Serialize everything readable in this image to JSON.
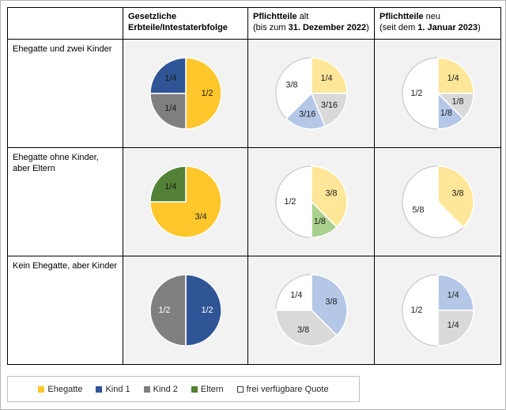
{
  "header": {
    "col1": {
      "line1": "Gesetzliche",
      "line2": "Erbteile/Intestaterbfolge"
    },
    "col2": {
      "bold1": "Pflichtteile",
      "reg1": " alt",
      "reg2": "(bis zum ",
      "bold2": "31. Dezember 2022",
      "reg3": ")"
    },
    "col3": {
      "bold1": "Pflichtteile",
      "reg1": " neu",
      "reg2": "(seit dem ",
      "bold2": "1. Januar 2023",
      "reg3": ")"
    }
  },
  "rows": [
    {
      "label": "Ehegatte und zwei Kinder"
    },
    {
      "label": "Ehegatte ohne Kinder, aber Eltern"
    },
    {
      "label": "Kein Ehegatte, aber Kinder"
    }
  ],
  "legend": {
    "items": [
      {
        "label": "Ehegatte",
        "color": "#FFC72C",
        "outlined": false
      },
      {
        "label": "Kind 1",
        "color": "#2F5597",
        "outlined": false
      },
      {
        "label": "Kind 2",
        "color": "#7F7F7F",
        "outlined": false
      },
      {
        "label": "Eltern",
        "color": "#538135",
        "outlined": false
      },
      {
        "label": "frei verfügbare Quote",
        "color": "#FFFFFF",
        "outlined": true
      }
    ]
  },
  "colors": {
    "ehegatte_full": "#FFC72C",
    "ehegatte_light": "#FFE699",
    "kind1_full": "#2F5597",
    "kind1_light": "#B4C7E7",
    "kind2_full": "#7F7F7F",
    "kind2_light": "#D9D9D9",
    "eltern_full": "#538135",
    "eltern_light": "#A9D18E",
    "frei": "#FFFFFF",
    "cell_background": "#F2F2F2",
    "table_border": "#000000"
  },
  "chart_data": [
    {
      "type": "pie",
      "row": "Ehegatte und zwei Kinder",
      "column": "Gesetzliche Erbteile/Intestaterbfolge",
      "slices": [
        {
          "name": "Ehegatte",
          "fraction": "1/2",
          "value": 0.5,
          "color": "#FFC72C",
          "text_color": "#1a1a1a"
        },
        {
          "name": "Kind 2",
          "fraction": "1/4",
          "value": 0.25,
          "color": "#7F7F7F",
          "text_color": "#1a1a1a"
        },
        {
          "name": "Kind 1",
          "fraction": "1/4",
          "value": 0.25,
          "color": "#2F5597",
          "text_color": "#1a1a1a"
        }
      ]
    },
    {
      "type": "pie",
      "row": "Ehegatte und zwei Kinder",
      "column": "Pflichtteile alt (bis zum 31. Dezember 2022)",
      "slices": [
        {
          "name": "Ehegatte",
          "fraction": "1/4",
          "value": 0.25,
          "color": "#FFE699",
          "text_color": "#1a1a1a"
        },
        {
          "name": "Kind 2",
          "fraction": "3/16",
          "value": 0.1875,
          "color": "#D9D9D9",
          "text_color": "#1a1a1a"
        },
        {
          "name": "Kind 1",
          "fraction": "3/16",
          "value": 0.1875,
          "color": "#B4C7E7",
          "text_color": "#1a1a1a"
        },
        {
          "name": "frei verfügbare Quote",
          "fraction": "3/8",
          "value": 0.375,
          "color": "#FFFFFF",
          "text_color": "#1a1a1a"
        }
      ]
    },
    {
      "type": "pie",
      "row": "Ehegatte und zwei Kinder",
      "column": "Pflichtteile neu (seit dem 1. Januar 2023)",
      "slices": [
        {
          "name": "Ehegatte",
          "fraction": "1/4",
          "value": 0.25,
          "color": "#FFE699",
          "text_color": "#1a1a1a"
        },
        {
          "name": "Kind 2",
          "fraction": "1/8",
          "value": 0.125,
          "color": "#D9D9D9",
          "text_color": "#1a1a1a"
        },
        {
          "name": "Kind 1",
          "fraction": "1/8",
          "value": 0.125,
          "color": "#B4C7E7",
          "text_color": "#1a1a1a"
        },
        {
          "name": "frei verfügbare Quote",
          "fraction": "1/2",
          "value": 0.5,
          "color": "#FFFFFF",
          "text_color": "#1a1a1a"
        }
      ]
    },
    {
      "type": "pie",
      "row": "Ehegatte ohne Kinder, aber Eltern",
      "column": "Gesetzliche Erbteile/Intestaterbfolge",
      "slices": [
        {
          "name": "Ehegatte",
          "fraction": "3/4",
          "value": 0.75,
          "color": "#FFC72C",
          "text_color": "#1a1a1a"
        },
        {
          "name": "Eltern",
          "fraction": "1/4",
          "value": 0.25,
          "color": "#538135",
          "text_color": "#1a1a1a"
        }
      ]
    },
    {
      "type": "pie",
      "row": "Ehegatte ohne Kinder, aber Eltern",
      "column": "Pflichtteile alt (bis zum 31. Dezember 2022)",
      "slices": [
        {
          "name": "Ehegatte",
          "fraction": "3/8",
          "value": 0.375,
          "color": "#FFE699",
          "text_color": "#1a1a1a"
        },
        {
          "name": "Eltern",
          "fraction": "1/8",
          "value": 0.125,
          "color": "#A9D18E",
          "text_color": "#1a1a1a"
        },
        {
          "name": "frei verfügbare Quote",
          "fraction": "1/2",
          "value": 0.5,
          "color": "#FFFFFF",
          "text_color": "#1a1a1a"
        }
      ]
    },
    {
      "type": "pie",
      "row": "Ehegatte ohne Kinder, aber Eltern",
      "column": "Pflichtteile neu (seit dem 1. Januar 2023)",
      "slices": [
        {
          "name": "Ehegatte",
          "fraction": "3/8",
          "value": 0.375,
          "color": "#FFE699",
          "text_color": "#1a1a1a"
        },
        {
          "name": "frei verfügbare Quote",
          "fraction": "5/8",
          "value": 0.625,
          "color": "#FFFFFF",
          "text_color": "#1a1a1a"
        }
      ]
    },
    {
      "type": "pie",
      "row": "Kein Ehegatte, aber Kinder",
      "column": "Gesetzliche Erbteile/Intestaterbfolge",
      "slices": [
        {
          "name": "Kind 1",
          "fraction": "1/2",
          "value": 0.5,
          "color": "#2F5597",
          "text_color": "#ffffff"
        },
        {
          "name": "Kind 2",
          "fraction": "1/2",
          "value": 0.5,
          "color": "#7F7F7F",
          "text_color": "#ffffff"
        }
      ]
    },
    {
      "type": "pie",
      "row": "Kein Ehegatte, aber Kinder",
      "column": "Pflichtteile alt (bis zum 31. Dezember 2022)",
      "slices": [
        {
          "name": "Kind 1",
          "fraction": "3/8",
          "value": 0.375,
          "color": "#B4C7E7",
          "text_color": "#1a1a1a"
        },
        {
          "name": "Kind 2",
          "fraction": "3/8",
          "value": 0.375,
          "color": "#D9D9D9",
          "text_color": "#1a1a1a"
        },
        {
          "name": "frei verfügbare Quote",
          "fraction": "1/4",
          "value": 0.25,
          "color": "#FFFFFF",
          "text_color": "#1a1a1a"
        }
      ]
    },
    {
      "type": "pie",
      "row": "Kein Ehegatte, aber Kinder",
      "column": "Pflichtteile neu (seit dem 1. Januar 2023)",
      "slices": [
        {
          "name": "Kind 1",
          "fraction": "1/4",
          "value": 0.25,
          "color": "#B4C7E7",
          "text_color": "#1a1a1a"
        },
        {
          "name": "Kind 2",
          "fraction": "1/4",
          "value": 0.25,
          "color": "#D9D9D9",
          "text_color": "#1a1a1a"
        },
        {
          "name": "frei verfügbare Quote",
          "fraction": "1/2",
          "value": 0.5,
          "color": "#FFFFFF",
          "text_color": "#1a1a1a"
        }
      ]
    }
  ]
}
